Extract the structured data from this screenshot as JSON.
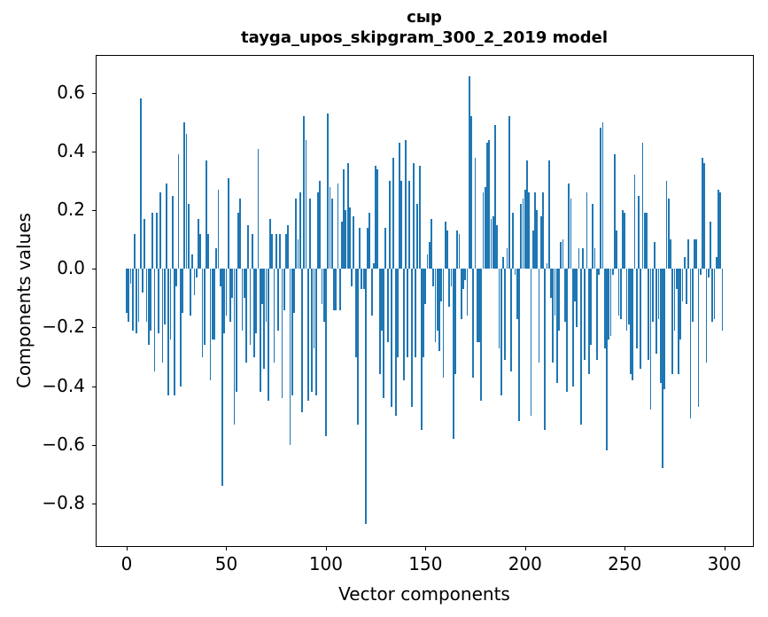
{
  "figure": {
    "title_line1": "сыр",
    "title_line2": "tayga_upos_skipgram_300_2_2019 model",
    "xlabel": "Vector components",
    "ylabel": "Components values",
    "bar_color": "#1f77b4",
    "spine_color": "#000000",
    "background_color": "#ffffff"
  },
  "chart_data": {
    "type": "bar",
    "title": "сыр",
    "subtitle": "tayga_upos_skipgram_300_2_2019 model",
    "xlabel": "Vector components",
    "ylabel": "Components values",
    "grid": false,
    "legend": null,
    "bar_color": "#1f77b4",
    "xlim": [
      -15.8,
      314.6
    ],
    "ylim": [
      -0.948,
      0.729
    ],
    "x_ticks": [
      {
        "value": 0,
        "label": "0"
      },
      {
        "value": 50,
        "label": "50"
      },
      {
        "value": 100,
        "label": "100"
      },
      {
        "value": 150,
        "label": "150"
      },
      {
        "value": 200,
        "label": "200"
      },
      {
        "value": 250,
        "label": "250"
      },
      {
        "value": 300,
        "label": "300"
      }
    ],
    "y_ticks": [
      {
        "value": 0.6,
        "label": "0.6"
      },
      {
        "value": 0.4,
        "label": "0.4"
      },
      {
        "value": 0.2,
        "label": "0.2"
      },
      {
        "value": 0.0,
        "label": "0.0"
      },
      {
        "value": -0.2,
        "label": "−0.2"
      },
      {
        "value": -0.4,
        "label": "−0.4"
      },
      {
        "value": -0.6,
        "label": "−0.6"
      },
      {
        "value": -0.8,
        "label": "−0.8"
      }
    ],
    "x_description": "vector component index 0..299",
    "values": [
      -0.15,
      -0.18,
      -0.05,
      -0.21,
      0.12,
      -0.22,
      -0.18,
      0.58,
      -0.08,
      0.17,
      -0.18,
      -0.26,
      -0.21,
      0.19,
      -0.35,
      0.19,
      -0.22,
      0.26,
      -0.32,
      -0.19,
      0.29,
      -0.43,
      -0.24,
      0.25,
      -0.43,
      -0.06,
      0.39,
      -0.4,
      -0.15,
      0.5,
      0.46,
      0.22,
      -0.16,
      0.05,
      -0.09,
      -0.03,
      0.17,
      0.12,
      -0.3,
      -0.26,
      0.37,
      0.12,
      -0.38,
      -0.24,
      -0.24,
      0.07,
      0.27,
      -0.06,
      -0.74,
      -0.22,
      -0.16,
      0.31,
      -0.18,
      -0.1,
      -0.53,
      -0.42,
      0.19,
      0.24,
      -0.21,
      -0.1,
      -0.32,
      0.15,
      -0.26,
      0.12,
      -0.3,
      -0.22,
      0.41,
      -0.42,
      -0.12,
      -0.34,
      -0.18,
      -0.45,
      0.17,
      0.12,
      -0.32,
      0.12,
      -0.21,
      0.12,
      -0.44,
      -0.14,
      0.12,
      0.15,
      -0.6,
      -0.43,
      -0.15,
      0.24,
      0.1,
      0.26,
      -0.49,
      0.52,
      0.44,
      -0.45,
      0.24,
      -0.42,
      -0.27,
      -0.43,
      0.26,
      0.3,
      -0.12,
      -0.18,
      -0.57,
      0.53,
      0.28,
      0.24,
      -0.14,
      -0.14,
      0.29,
      -0.14,
      0.16,
      0.34,
      0.2,
      0.36,
      0.21,
      -0.06,
      0.18,
      -0.3,
      -0.53,
      0.14,
      -0.07,
      -0.07,
      -0.87,
      0.14,
      0.19,
      -0.16,
      0.02,
      0.35,
      0.34,
      -0.36,
      -0.21,
      -0.44,
      0.14,
      -0.25,
      0.3,
      -0.47,
      0.38,
      -0.5,
      -0.3,
      0.43,
      0.3,
      -0.38,
      0.44,
      -0.3,
      0.3,
      -0.47,
      0.36,
      -0.3,
      0.22,
      0.35,
      -0.55,
      -0.3,
      -0.12,
      0.05,
      0.09,
      0.17,
      -0.06,
      -0.25,
      -0.21,
      -0.28,
      -0.11,
      -0.37,
      0.16,
      0.13,
      -0.13,
      -0.06,
      -0.58,
      -0.36,
      0.13,
      0.12,
      -0.17,
      -0.07,
      -0.04,
      -0.16,
      0.655,
      0.52,
      -0.37,
      0.38,
      -0.25,
      -0.25,
      -0.45,
      0.26,
      0.28,
      0.43,
      0.44,
      0.17,
      0.18,
      0.49,
      0.15,
      -0.27,
      -0.43,
      0.04,
      -0.31,
      0.07,
      0.52,
      -0.35,
      0.19,
      -0.02,
      -0.17,
      -0.52,
      0.22,
      0.24,
      0.27,
      0.37,
      0.26,
      -0.5,
      0.13,
      0.26,
      0.2,
      -0.32,
      0.18,
      0.26,
      -0.55,
      0.02,
      0.37,
      -0.1,
      -0.32,
      -0.16,
      -0.39,
      -0.21,
      0.09,
      0.1,
      -0.18,
      -0.42,
      0.29,
      0.24,
      -0.4,
      -0.11,
      -0.2,
      0.07,
      -0.53,
      0.07,
      -0.31,
      0.26,
      -0.36,
      -0.26,
      0.22,
      0.07,
      -0.31,
      -0.02,
      0.48,
      0.5,
      -0.27,
      -0.62,
      -0.24,
      -0.23,
      -0.02,
      0.39,
      0.13,
      -0.16,
      -0.17,
      0.2,
      0.19,
      -0.21,
      -0.19,
      -0.36,
      -0.38,
      0.32,
      -0.27,
      0.25,
      -0.34,
      0.43,
      0.19,
      0.19,
      -0.31,
      -0.48,
      -0.18,
      0.09,
      -0.29,
      -0.17,
      -0.39,
      -0.68,
      -0.41,
      0.3,
      0.24,
      0.1,
      -0.36,
      -0.21,
      -0.07,
      -0.36,
      -0.24,
      -0.11,
      0.04,
      -0.12,
      0.1,
      -0.51,
      -0.18,
      0.1,
      0.1,
      -0.47,
      -0.02,
      0.38,
      0.36,
      -0.32,
      -0.03,
      0.16,
      -0.18,
      -0.17,
      0.04,
      0.27,
      0.26,
      -0.21
    ]
  }
}
